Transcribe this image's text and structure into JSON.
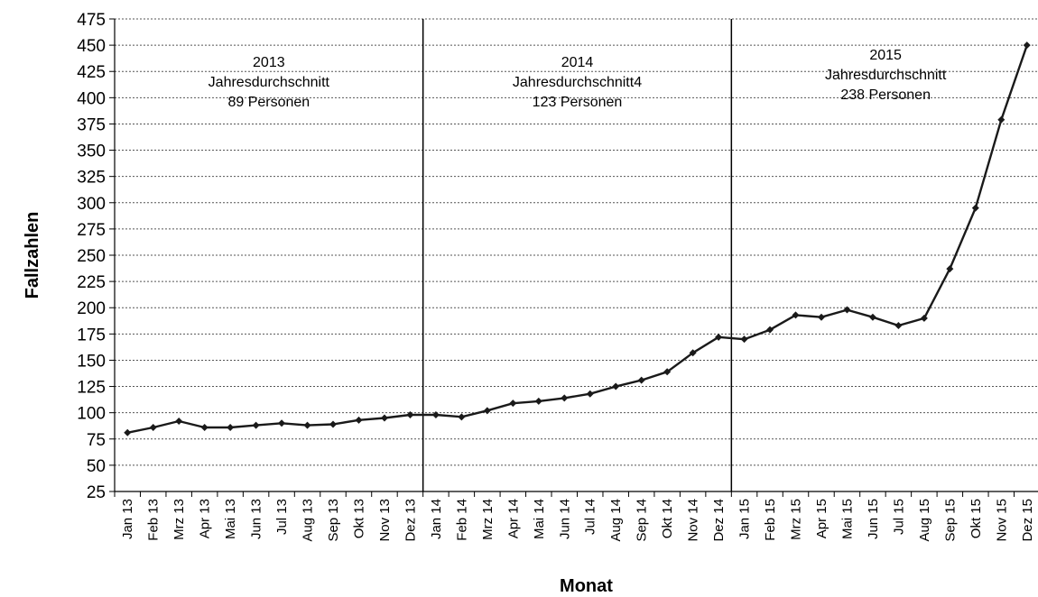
{
  "chart_data": {
    "type": "line",
    "title": "",
    "xlabel": "Monat",
    "ylabel": "Fallzahlen",
    "ylim": [
      25,
      475
    ],
    "yticks": [
      25,
      50,
      75,
      100,
      125,
      150,
      175,
      200,
      225,
      250,
      275,
      300,
      325,
      350,
      375,
      400,
      425,
      450,
      475
    ],
    "grid": "horizontal dashed",
    "legend": "none",
    "line_color": "#1a1a1a",
    "categories": [
      "Jan 13",
      "Feb 13",
      "Mrz 13",
      "Apr 13",
      "Mai 13",
      "Jun 13",
      "Jul 13",
      "Aug 13",
      "Sep 13",
      "Okt 13",
      "Nov 13",
      "Dez 13",
      "Jan 14",
      "Feb 14",
      "Mrz 14",
      "Apr 14",
      "Mai 14",
      "Jun 14",
      "Jul 14",
      "Aug 14",
      "Sep 14",
      "Okt 14",
      "Nov 14",
      "Dez 14",
      "Jan 15",
      "Feb 15",
      "Mrz 15",
      "Apr 15",
      "Mai 15",
      "Jun 15",
      "Jul 15",
      "Aug 15",
      "Sep 15",
      "Okt 15",
      "Nov 15",
      "Dez 15"
    ],
    "values": [
      81,
      86,
      92,
      86,
      86,
      88,
      90,
      88,
      89,
      93,
      95,
      98,
      98,
      96,
      102,
      109,
      111,
      114,
      118,
      125,
      131,
      139,
      157,
      172,
      170,
      179,
      193,
      191,
      198,
      191,
      183,
      190,
      237,
      295,
      379,
      450
    ],
    "separators_after": [
      "Dez 13",
      "Dez 14"
    ],
    "annotations": [
      {
        "lines": [
          "2013",
          "Jahresdurchschnitt",
          "89 Personen"
        ],
        "year": "2013"
      },
      {
        "lines": [
          "2014",
          "Jahresdurchschnitt4",
          "123 Personen"
        ],
        "year": "2014"
      },
      {
        "lines": [
          "2015",
          "Jahresdurchschnitt",
          "238 Personen"
        ],
        "year": "2015"
      }
    ]
  }
}
